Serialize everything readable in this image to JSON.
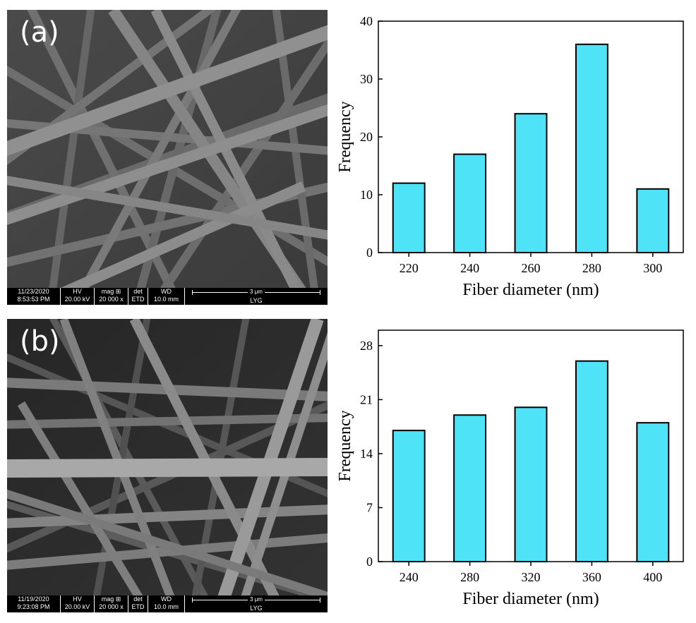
{
  "panels": [
    {
      "label": "(a)",
      "sem_info": {
        "date": "11/23/2020",
        "time": "8:53:53 PM",
        "hv_label": "HV",
        "hv_value": "20.00 kV",
        "mag_label": "mag ⊞",
        "mag_value": "20 000 x",
        "det_label": "det",
        "det_value": "ETD",
        "wd_label": "WD",
        "wd_value": "10.0 mm",
        "scale": "3 μm",
        "operator": "LYG"
      }
    },
    {
      "label": "(b)",
      "sem_info": {
        "date": "11/19/2020",
        "time": "9:23:08 PM",
        "hv_label": "HV",
        "hv_value": "20.00 kV",
        "mag_label": "mag ⊞",
        "mag_value": "20 000 x",
        "det_label": "det",
        "det_value": "ETD",
        "wd_label": "WD",
        "wd_value": "10.0 mm",
        "scale": "3 μm",
        "operator": "LYG"
      }
    }
  ],
  "chart_data": [
    {
      "type": "bar",
      "categories": [
        "220",
        "240",
        "260",
        "280",
        "300"
      ],
      "values": [
        12,
        17,
        24,
        36,
        11
      ],
      "title": "",
      "xlabel": "Fiber diameter (nm)",
      "ylabel": "Frequency",
      "ylim": [
        0,
        40
      ],
      "yticks": [
        0,
        10,
        20,
        30,
        40
      ],
      "bar_color": "#4fe3f7",
      "grid": false,
      "legend": "none"
    },
    {
      "type": "bar",
      "categories": [
        "240",
        "280",
        "320",
        "360",
        "400"
      ],
      "values": [
        17,
        19,
        20,
        26,
        18
      ],
      "title": "",
      "xlabel": "Fiber diameter (nm)",
      "ylabel": "Frequency",
      "ylim": [
        0,
        30
      ],
      "yticks": [
        0,
        7,
        14,
        21,
        28
      ],
      "bar_color": "#4fe3f7",
      "grid": false,
      "legend": "none"
    }
  ]
}
